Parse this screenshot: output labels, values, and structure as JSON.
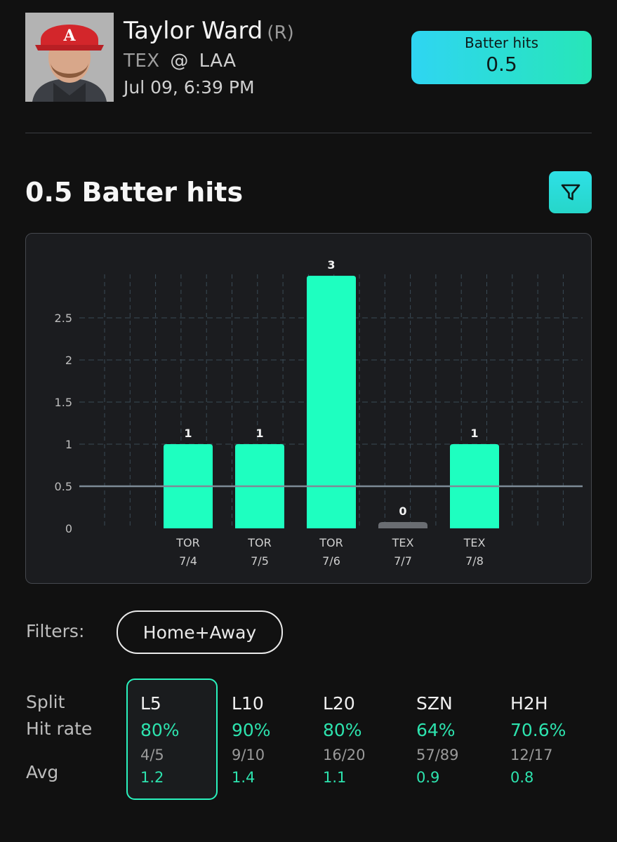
{
  "player": {
    "name": "Taylor Ward",
    "hand": "(R)",
    "away_team": "TEX",
    "at": "@",
    "home_team": "LAA",
    "game_time": "Jul 09, 6:39 PM"
  },
  "prop": {
    "label": "Batter hits",
    "line": "0.5"
  },
  "section_title": "0.5 Batter hits",
  "colors": {
    "hit": "#1effc0",
    "miss": "#6a6d72",
    "accent": "#2af2bd",
    "line": "#7d8a96"
  },
  "icons": {
    "filter": "funnel-icon"
  },
  "chart_data": {
    "type": "bar",
    "categories": [
      {
        "team": "TOR",
        "date": "7/4"
      },
      {
        "team": "TOR",
        "date": "7/5"
      },
      {
        "team": "TOR",
        "date": "7/6"
      },
      {
        "team": "TEX",
        "date": "7/7"
      },
      {
        "team": "TEX",
        "date": "7/8"
      }
    ],
    "values": [
      1,
      1,
      3,
      0,
      1
    ],
    "value_labels": [
      "1",
      "1",
      "3",
      "0",
      "1"
    ],
    "threshold": 0.5,
    "ylim": [
      0,
      3
    ],
    "yticks": [
      0,
      0.5,
      1,
      1.5,
      2,
      2.5
    ],
    "ytick_labels": [
      "0",
      "0.5",
      "1",
      "1.5",
      "2",
      "2.5"
    ],
    "grid": true
  },
  "filters": {
    "label": "Filters:",
    "value": "Home+Away"
  },
  "splits": {
    "row_labels": {
      "split": "Split",
      "hit_rate": "Hit rate",
      "avg": "Avg"
    },
    "columns": [
      {
        "name": "L5",
        "rate": "80%",
        "frac": "4/5",
        "avg": "1.2",
        "selected": true
      },
      {
        "name": "L10",
        "rate": "90%",
        "frac": "9/10",
        "avg": "1.4"
      },
      {
        "name": "L20",
        "rate": "80%",
        "frac": "16/20",
        "avg": "1.1"
      },
      {
        "name": "SZN",
        "rate": "64%",
        "frac": "57/89",
        "avg": "0.9"
      },
      {
        "name": "H2H",
        "rate": "70.6%",
        "frac": "12/17",
        "avg": "0.8"
      }
    ]
  }
}
